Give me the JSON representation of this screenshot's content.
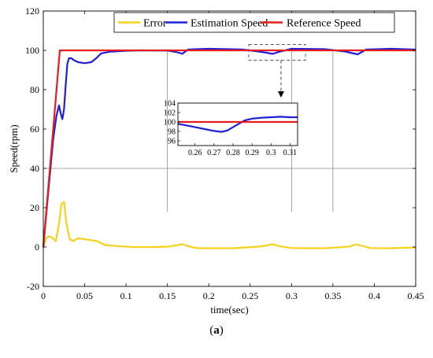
{
  "chart_data": {
    "type": "line",
    "xlabel": "time(sec)",
    "ylabel": "Speed(rpm)",
    "xlim": [
      0,
      0.45
    ],
    "ylim": [
      -20,
      120
    ],
    "xticks": [
      0,
      0.05,
      0.1,
      0.15,
      0.2,
      0.25,
      0.3,
      0.35,
      0.4,
      0.45
    ],
    "yticks": [
      -20,
      0,
      20,
      40,
      60,
      80,
      100,
      120
    ],
    "legend_position": "top",
    "grid": false,
    "series": [
      {
        "name": "Error",
        "color": "#f5d21b",
        "x": [
          0,
          0.003,
          0.006,
          0.01,
          0.015,
          0.019,
          0.022,
          0.025,
          0.028,
          0.032,
          0.036,
          0.042,
          0.05,
          0.058,
          0.065,
          0.075,
          0.09,
          0.11,
          0.13,
          0.15,
          0.16,
          0.168,
          0.175,
          0.185,
          0.2,
          0.23,
          0.26,
          0.27,
          0.277,
          0.285,
          0.3,
          0.34,
          0.37,
          0.378,
          0.385,
          0.395,
          0.42,
          0.45
        ],
        "y": [
          0,
          4,
          5.5,
          5,
          3,
          12,
          22,
          23,
          12,
          4,
          3,
          4.5,
          4,
          3.5,
          3,
          1,
          0.5,
          0,
          0,
          0.2,
          0.8,
          1.5,
          0.5,
          -0.5,
          -0.6,
          -0.6,
          0.2,
          0.8,
          1.4,
          0.5,
          -0.5,
          -0.6,
          0.3,
          1.4,
          0.6,
          -0.5,
          -0.6,
          -0.2
        ]
      },
      {
        "name": "Estimation Speed",
        "color": "#1f1fd9",
        "x": [
          0,
          0.006,
          0.012,
          0.016,
          0.019,
          0.021,
          0.023,
          0.025,
          0.027,
          0.029,
          0.031,
          0.034,
          0.037,
          0.042,
          0.05,
          0.058,
          0.064,
          0.07,
          0.08,
          0.1,
          0.12,
          0.15,
          0.16,
          0.168,
          0.175,
          0.185,
          0.2,
          0.24,
          0.26,
          0.27,
          0.277,
          0.285,
          0.3,
          0.34,
          0.365,
          0.373,
          0.38,
          0.39,
          0.42,
          0.45
        ],
        "y": [
          0,
          28,
          55,
          67,
          72,
          68,
          65,
          70,
          82,
          93,
          96,
          96,
          95,
          94,
          93.5,
          94,
          96,
          98.5,
          99.3,
          99.8,
          100,
          99.9,
          99.2,
          98.3,
          100.4,
          100.6,
          100.8,
          100.5,
          99.4,
          98.8,
          98.2,
          99.3,
          100.8,
          100.6,
          99.4,
          98.6,
          98,
          100.4,
          100.8,
          100.4
        ]
      },
      {
        "name": "Reference Speed",
        "color": "#e81c1c",
        "x": [
          0,
          0.02,
          0.45
        ],
        "y": [
          0,
          100,
          100
        ]
      }
    ],
    "inset": {
      "xlim": [
        0.251,
        0.314
      ],
      "ylim": [
        95,
        104
      ],
      "xticks": [
        0.26,
        0.27,
        0.28,
        0.29,
        0.3,
        0.31
      ],
      "xtick_labels": [
        "0.26",
        "0.27",
        "0.28",
        "0.29",
        "0.3",
        "0.31"
      ],
      "yticks": [
        96,
        98,
        100,
        102,
        104
      ],
      "series": [
        {
          "name": "Estimation Speed",
          "color": "#1f1fd9",
          "x": [
            0.251,
            0.255,
            0.26,
            0.265,
            0.27,
            0.274,
            0.277,
            0.28,
            0.283,
            0.286,
            0.29,
            0.295,
            0.3,
            0.305,
            0.31,
            0.314
          ],
          "y": [
            99.6,
            99.3,
            98.9,
            98.5,
            98.1,
            97.9,
            98.2,
            98.9,
            99.6,
            100.3,
            100.7,
            100.9,
            101.0,
            101.1,
            101.0,
            101.0
          ]
        },
        {
          "name": "Reference Speed",
          "color": "#e81c1c",
          "x": [
            0.251,
            0.314
          ],
          "y": [
            100,
            100
          ]
        }
      ]
    }
  },
  "caption": {
    "paren_open": "(",
    "label": "a",
    "paren_close": ")"
  }
}
